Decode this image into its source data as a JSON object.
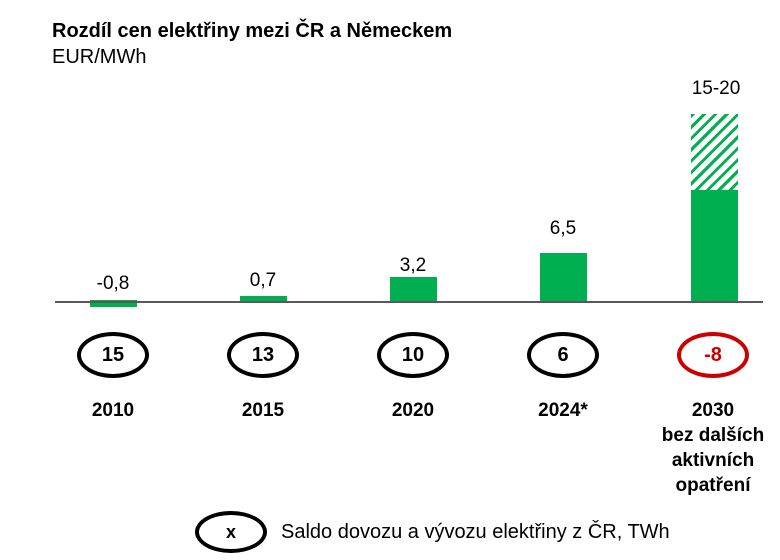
{
  "title": "Rozdíl cen elektřiny mezi ČR a Německem",
  "unit": "EUR/MWh",
  "colors": {
    "bar_green": "#00B050",
    "highlight_red": "#CC0000",
    "axis_gray": "#595959",
    "text_black": "#000000"
  },
  "chart_data": {
    "type": "bar",
    "title": "Rozdíl cen elektřiny mezi ČR a Německem",
    "ylabel": "EUR/MWh",
    "gridlines": false,
    "y_axis_visible": false,
    "legend_position": "bottom",
    "bars": [
      {
        "category": "2010",
        "category_display": "2010",
        "value": -0.8,
        "label": "-0,8",
        "saldo_twh": 15
      },
      {
        "category": "2015",
        "category_display": "2015",
        "value": 0.7,
        "label": "0,7",
        "saldo_twh": 13
      },
      {
        "category": "2020",
        "category_display": "2020",
        "value": 3.2,
        "label": "3,2",
        "saldo_twh": 10
      },
      {
        "category": "2024*",
        "category_display": "2024*",
        "value": 6.5,
        "label": "6,5",
        "saldo_twh": 6
      },
      {
        "category": "2030 bez dalších aktivních opatření",
        "category_display": "2030\nbez dalších\naktivních\nopatření",
        "value_min": 15,
        "value_max": 20,
        "label": "15-20",
        "saldo_twh": -8,
        "upper_range_style": "hatched"
      }
    ]
  },
  "legend": {
    "symbol": "x",
    "label": "Saldo dovozu a vývozu elektřiny z ČR, TWh"
  }
}
